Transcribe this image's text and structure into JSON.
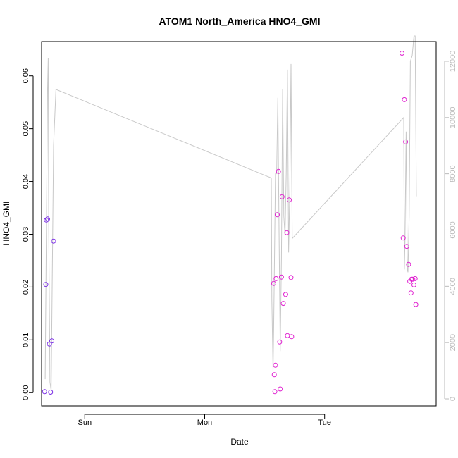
{
  "chart_data": {
    "type": "scatter",
    "title": "ATOM1 North_America HNO4_GMI",
    "xlabel": "Date",
    "ylabel": "HNO4_GMI",
    "ylabel_right": "",
    "x_ticks": [
      "Sun",
      "Mon",
      "Tue"
    ],
    "y_ticks": [
      "0.00",
      "0.01",
      "0.02",
      "0.03",
      "0.04",
      "0.05",
      "0.06"
    ],
    "y2_ticks": [
      "0",
      "2000",
      "4000",
      "6000",
      "8000",
      "10000",
      "12000"
    ],
    "x_unit": "days since Saturday 00:00",
    "xlim": [
      0.64,
      3.93
    ],
    "ylim": [
      -0.0025,
      0.0665
    ],
    "y2lim": [
      -250,
      12700
    ],
    "grid": false,
    "legend": "none",
    "colors": {
      "points_early": "#7b2ee6",
      "points_late": "#e020d0",
      "altitude_line": "#c8c8c8",
      "axes": "#000000",
      "right_axis": "#bbbbbb"
    },
    "series": [
      {
        "kind": "points",
        "values": [
          [
            0.665,
            0.0002
          ],
          [
            0.675,
            0.0205
          ],
          [
            0.68,
            0.0327
          ],
          [
            0.69,
            0.0329
          ],
          [
            0.705,
            0.0092
          ],
          [
            0.715,
            0.0001
          ],
          [
            0.725,
            0.0098
          ],
          [
            0.74,
            0.0287
          ],
          [
            2.575,
            0.0207
          ],
          [
            2.58,
            0.0034
          ],
          [
            2.585,
            0.0002
          ],
          [
            2.59,
            0.0052
          ],
          [
            2.595,
            0.0216
          ],
          [
            2.605,
            0.0337
          ],
          [
            2.615,
            0.0419
          ],
          [
            2.625,
            0.0096
          ],
          [
            2.63,
            0.0007
          ],
          [
            2.64,
            0.0219
          ],
          [
            2.645,
            0.0371
          ],
          [
            2.655,
            0.0169
          ],
          [
            2.675,
            0.0186
          ],
          [
            2.685,
            0.0303
          ],
          [
            2.69,
            0.0108
          ],
          [
            2.705,
            0.0365
          ],
          [
            2.72,
            0.0218
          ],
          [
            2.725,
            0.0106
          ],
          [
            3.645,
            0.0643
          ],
          [
            3.655,
            0.0293
          ],
          [
            3.665,
            0.0555
          ],
          [
            3.675,
            0.0475
          ],
          [
            3.685,
            0.0277
          ],
          [
            3.7,
            0.0243
          ],
          [
            3.71,
            0.0211
          ],
          [
            3.72,
            0.0189
          ],
          [
            3.725,
            0.0215
          ],
          [
            3.735,
            0.0215
          ],
          [
            3.745,
            0.0204
          ],
          [
            3.755,
            0.0216
          ],
          [
            3.76,
            0.0167
          ]
        ]
      },
      {
        "kind": "altitude-line",
        "axis": "right",
        "values": [
          [
            0.67,
            700
          ],
          [
            0.68,
            6000
          ],
          [
            0.69,
            11000
          ],
          [
            0.695,
            12100
          ],
          [
            0.7,
            6000
          ],
          [
            0.71,
            600
          ],
          [
            0.72,
            300
          ],
          [
            0.74,
            9000
          ],
          [
            0.76,
            11000
          ],
          [
            2.555,
            7850
          ],
          [
            2.56,
            3500
          ],
          [
            2.57,
            1000
          ],
          [
            2.575,
            2500
          ],
          [
            2.59,
            8000
          ],
          [
            2.6,
            8000
          ],
          [
            2.61,
            10700
          ],
          [
            2.62,
            6000
          ],
          [
            2.63,
            1700
          ],
          [
            2.64,
            5000
          ],
          [
            2.65,
            11000
          ],
          [
            2.66,
            6500
          ],
          [
            2.67,
            5800
          ],
          [
            2.68,
            8000
          ],
          [
            2.69,
            11700
          ],
          [
            2.7,
            5200
          ],
          [
            2.71,
            7500
          ],
          [
            2.72,
            11900
          ],
          [
            2.73,
            5700
          ],
          [
            3.66,
            10000
          ],
          [
            3.665,
            4600
          ],
          [
            3.67,
            5500
          ],
          [
            3.68,
            9500
          ],
          [
            3.69,
            4600
          ],
          [
            3.695,
            4500
          ],
          [
            3.705,
            6500
          ],
          [
            3.715,
            12000
          ],
          [
            3.73,
            12200
          ],
          [
            3.745,
            12900
          ],
          [
            3.755,
            12900
          ],
          [
            3.765,
            7200
          ]
        ]
      }
    ]
  }
}
